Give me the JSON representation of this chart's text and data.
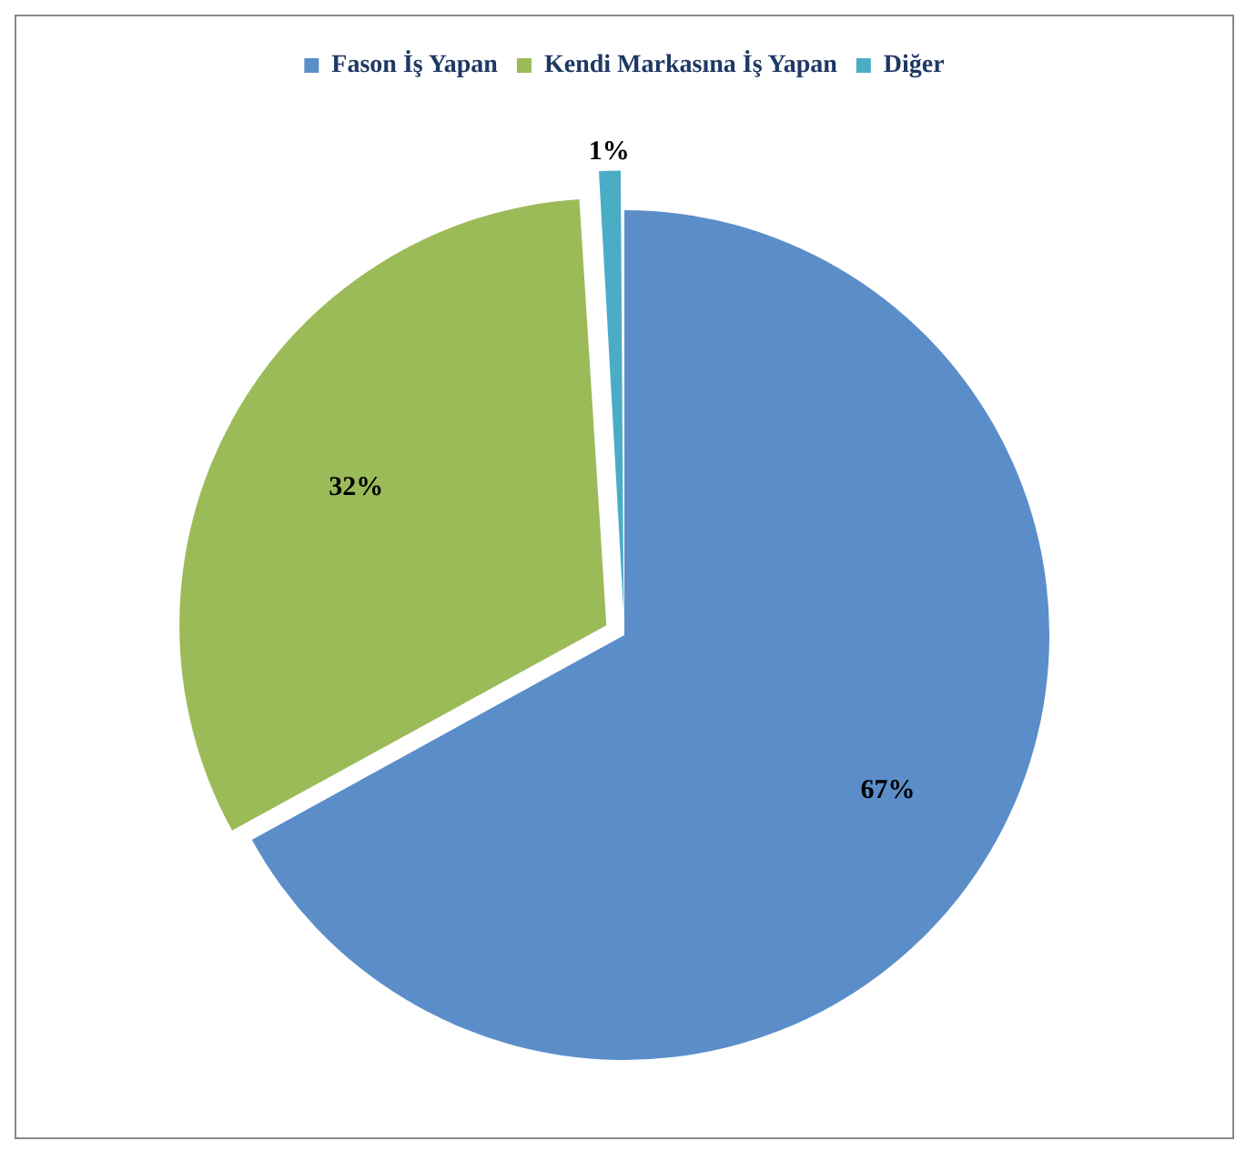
{
  "chart_data": {
    "type": "pie",
    "categories": [
      "Fason İş Yapan",
      "Kendi Markasına İş Yapan",
      "Diğer"
    ],
    "values": [
      67,
      32,
      1
    ],
    "colors": [
      "#5b8ec9",
      "#9bbb59",
      "#4bacc6"
    ],
    "value_labels": [
      "67%",
      "32%",
      "1%"
    ],
    "legend": "top"
  }
}
